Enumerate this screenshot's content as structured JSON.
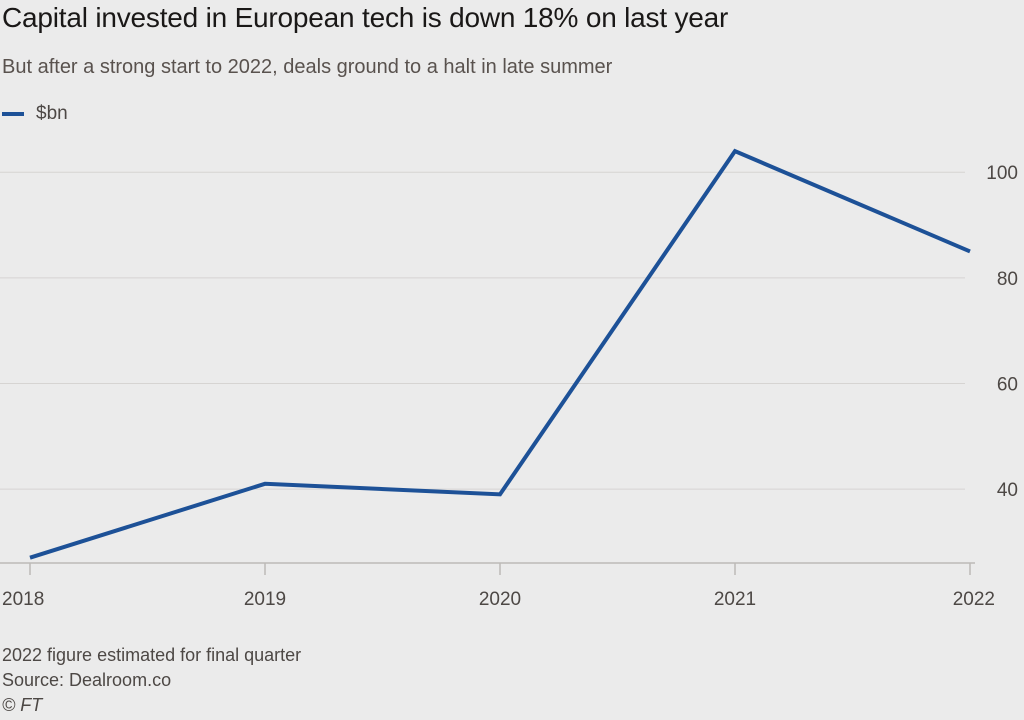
{
  "header": {
    "title": "Capital invested in European tech is down 18% on last year",
    "subtitle": "But after a strong start to 2022, deals ground to a halt in late summer"
  },
  "legend": {
    "label": "$bn"
  },
  "colors": {
    "series": "#1d5197",
    "grid": "#d6d4d2",
    "axis": "#bdbab7",
    "text": "#4d4845"
  },
  "chart_data": {
    "type": "line",
    "title": "Capital invested in European tech is down 18% on last year",
    "subtitle": "But after a strong start to 2022, deals ground to a halt in late summer",
    "xlabel": "",
    "ylabel": "$bn",
    "x": [
      "2018",
      "2019",
      "2020",
      "2021",
      "2022"
    ],
    "series": [
      {
        "name": "$bn",
        "values": [
          27,
          41,
          39,
          104,
          85
        ]
      }
    ],
    "ylim": [
      26,
      108
    ],
    "yticks": [
      40,
      60,
      80,
      100
    ],
    "ytick_labels": [
      "40",
      "60",
      "80",
      "100"
    ],
    "grid": true,
    "legend_position": "top-left"
  },
  "footer": {
    "note": "2022 figure estimated for final quarter",
    "source": "Source: Dealroom.co",
    "credit": "© FT"
  }
}
